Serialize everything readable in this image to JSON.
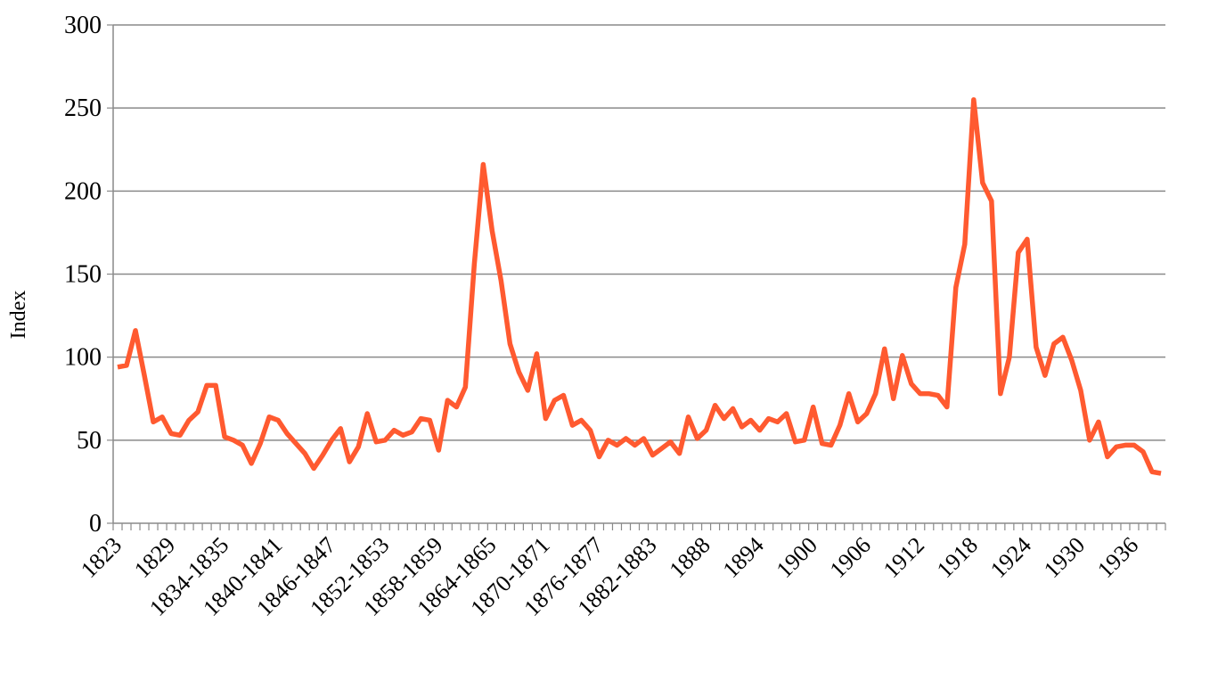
{
  "chart_data": {
    "type": "line",
    "title": "",
    "xlabel": "",
    "ylabel": "Index",
    "ylim": [
      0,
      300
    ],
    "yticks": [
      0,
      50,
      100,
      150,
      200,
      250,
      300
    ],
    "grid": true,
    "legend": "none",
    "x_labels": [
      "1823",
      "1829",
      "1834-1835",
      "1840-1841",
      "1846-1847",
      "1852-1853",
      "1858-1859",
      "1864-1865",
      "1870-1871",
      "1876-1877",
      "1882-1883",
      "1888",
      "1894",
      "1900",
      "1906",
      "1912",
      "1918",
      "1924",
      "1930",
      "1936"
    ],
    "x_label_indices": [
      0,
      6,
      12,
      18,
      24,
      30,
      36,
      42,
      48,
      54,
      60,
      66,
      72,
      78,
      84,
      90,
      96,
      102,
      108,
      114
    ],
    "series": [
      {
        "color": "#ff5a30",
        "values": [
          94,
          95,
          116,
          89,
          61,
          64,
          54,
          53,
          62,
          67,
          83,
          83,
          52,
          50,
          47,
          36,
          48,
          64,
          62,
          54,
          48,
          42,
          33,
          41,
          50,
          57,
          37,
          46,
          66,
          49,
          50,
          56,
          53,
          55,
          63,
          62,
          44,
          74,
          70,
          82,
          156,
          216,
          176,
          146,
          108,
          91,
          80,
          102,
          63,
          74,
          77,
          59,
          62,
          56,
          40,
          50,
          47,
          51,
          47,
          51,
          41,
          45,
          49,
          42,
          64,
          51,
          56,
          71,
          63,
          69,
          58,
          62,
          56,
          63,
          61,
          66,
          49,
          50,
          70,
          48,
          47,
          59,
          78,
          61,
          66,
          78,
          105,
          75,
          101,
          84,
          78,
          78,
          77,
          70,
          142,
          168,
          255,
          205,
          194,
          78,
          100,
          163,
          171,
          106,
          89,
          108,
          112,
          98,
          80,
          50,
          61,
          40,
          46,
          47,
          47,
          43,
          31,
          30
        ]
      }
    ]
  }
}
